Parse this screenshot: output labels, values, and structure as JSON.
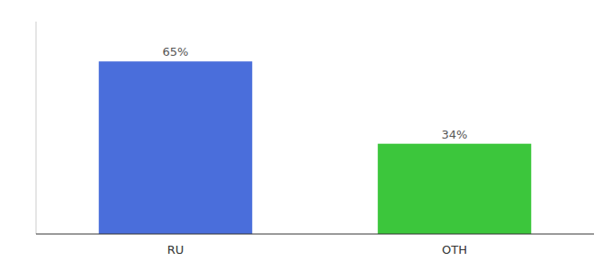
{
  "chart_data": {
    "type": "bar",
    "categories": [
      "RU",
      "OTH"
    ],
    "values": [
      65,
      34
    ],
    "value_labels": [
      "65%",
      "34%"
    ],
    "colors": [
      "#4a6edb",
      "#3cc63c"
    ],
    "ylim": [
      0,
      80
    ],
    "data_labels": true,
    "tick_labels": "x",
    "grid": false
  }
}
